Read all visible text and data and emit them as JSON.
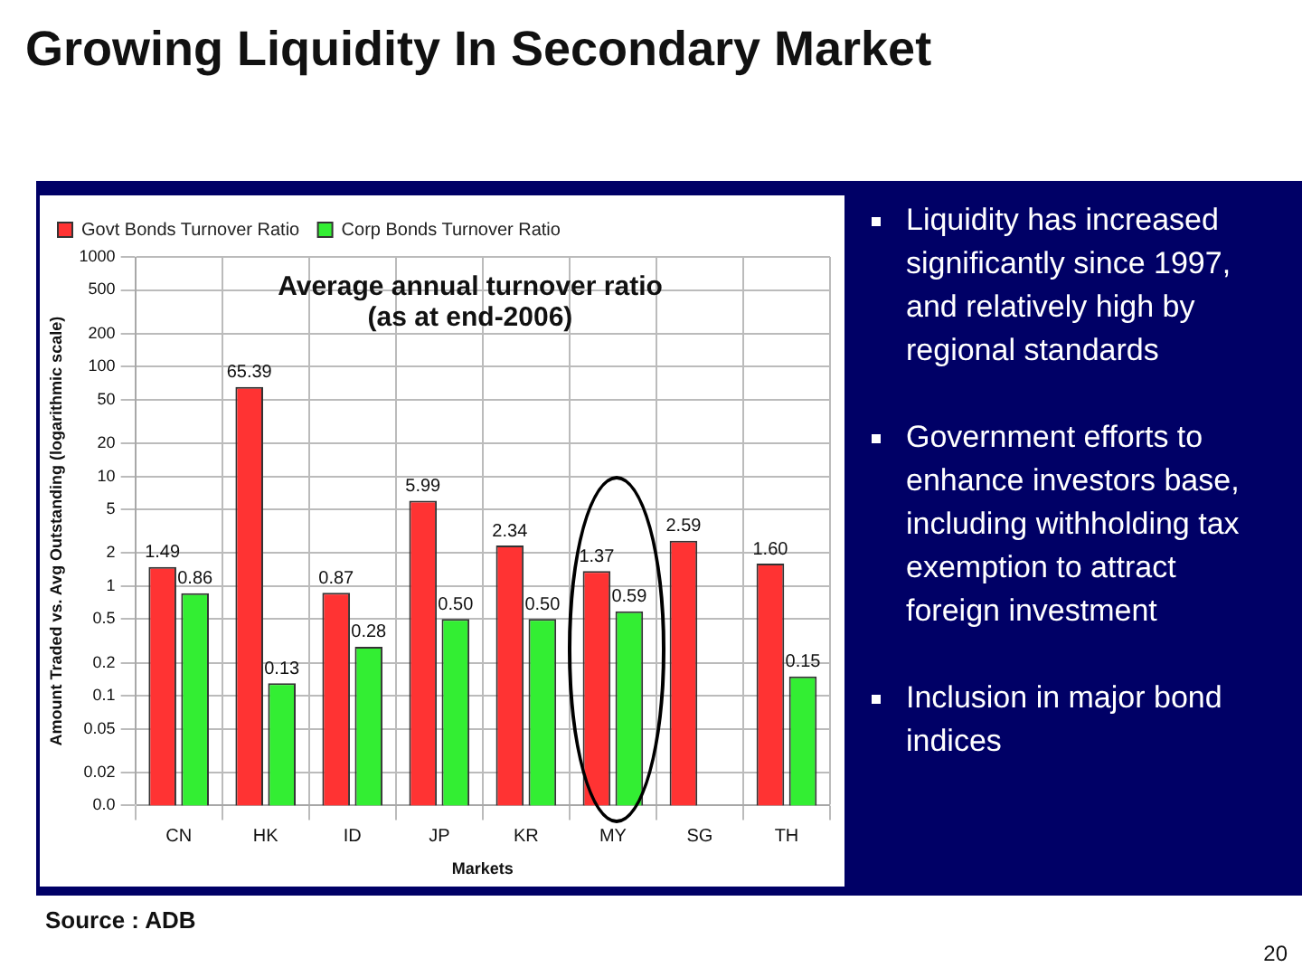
{
  "chart_data": {
    "type": "bar",
    "title": "Growing Liquidity In Secondary Market",
    "xlabel": "Markets",
    "ylabel": "Amount Traded vs. Avg Outstanding (logarithmic scale)",
    "categories": [
      "CN",
      "HK",
      "ID",
      "JP",
      "KR",
      "MY",
      "SG",
      "TH"
    ],
    "series": [
      {
        "name": "Govt Bonds Turnover Ratio",
        "color": "#ff3333",
        "values": [
          1.49,
          65.39,
          0.87,
          5.99,
          2.34,
          1.37,
          2.59,
          1.6
        ],
        "value_labels": [
          "1.49",
          "65.39",
          "0.87",
          "5.99",
          "2.34",
          "1.37",
          "2.59",
          "1.60"
        ]
      },
      {
        "name": "Corp Bonds Turnover Ratio",
        "color": "#33ee33",
        "values": [
          0.86,
          0.13,
          0.28,
          0.5,
          0.5,
          0.59,
          null,
          0.15
        ],
        "value_labels": [
          "0.86",
          "0.13",
          "0.28",
          "0.50",
          "0.50",
          "0.59",
          null,
          "0.15"
        ]
      }
    ],
    "log": "y",
    "ylim": [
      0.01,
      1000
    ],
    "yticks": [
      {
        "value": 0.01,
        "label": "0.0"
      },
      0.02,
      0.05,
      0.1,
      0.2,
      0.5,
      1,
      2,
      5,
      10,
      20,
      50,
      100,
      200,
      500,
      1000
    ],
    "grid": true,
    "legend": "top left",
    "annotations": [
      "Average annual turnover ratio (as at end-2006)",
      "Liquidity has increased significantly since 1997, and relatively high by regional standards",
      "Government efforts to enhance investors base, including withholding tax exemption to attract foreign investment",
      "Inclusion in major bond indices",
      "Source : ADB",
      "20"
    ]
  }
}
